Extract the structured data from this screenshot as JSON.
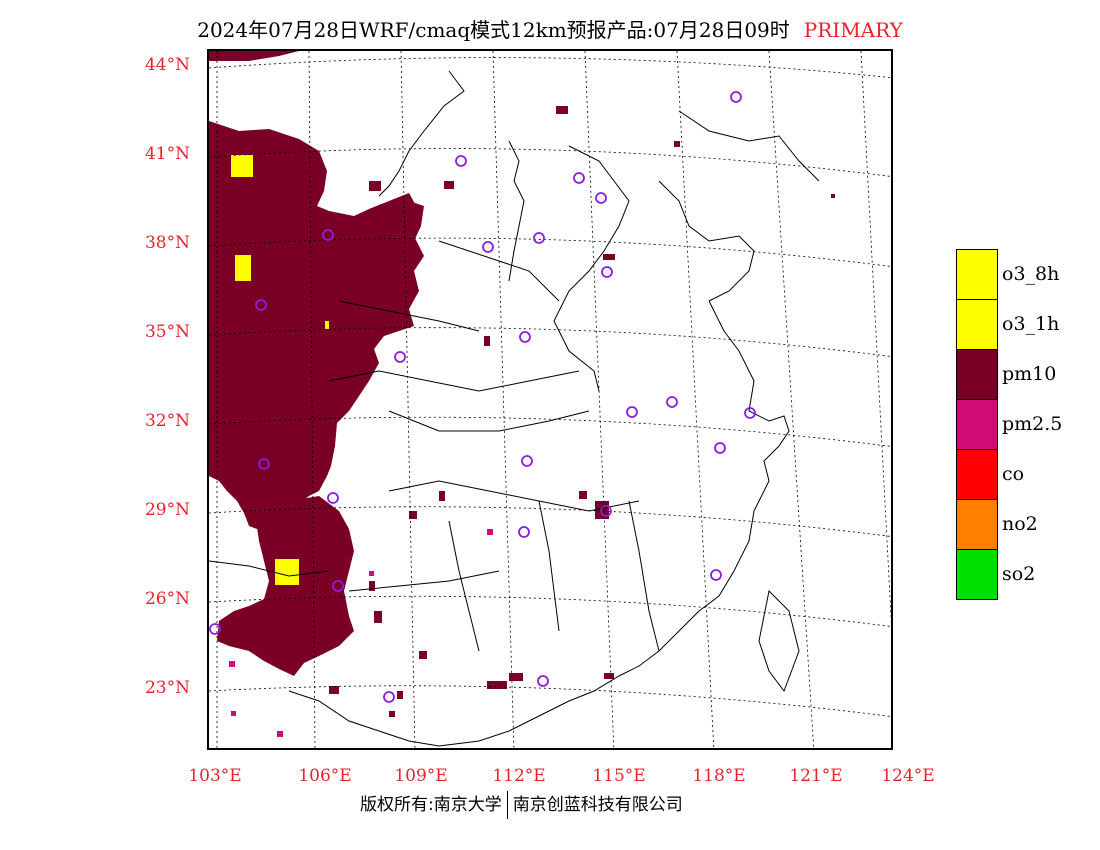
{
  "title": {
    "main": "2024年07月28日WRF/cmaq模式12km预报产品:07月28日09时",
    "tag": "PRIMARY"
  },
  "map": {
    "lat_ticks": [
      "44°N",
      "41°N",
      "38°N",
      "35°N",
      "32°N",
      "29°N",
      "26°N",
      "23°N"
    ],
    "lon_ticks": [
      "103°E",
      "106°E",
      "109°E",
      "112°E",
      "115°E",
      "118°E",
      "121°E",
      "124°E"
    ],
    "colors": {
      "pm10": "#7a0026",
      "pm25": "#d20a78",
      "o3": "#ffff00",
      "ring": "#8a1ee0",
      "grid": "#000000"
    }
  },
  "legend": [
    {
      "label": "o3_8h",
      "color": "#ffff00"
    },
    {
      "label": "o3_1h",
      "color": "#ffff00"
    },
    {
      "label": "pm10",
      "color": "#7a0026"
    },
    {
      "label": "pm2.5",
      "color": "#d20a78"
    },
    {
      "label": "co",
      "color": "#ff0000"
    },
    {
      "label": "no2",
      "color": "#ff7f00"
    },
    {
      "label": "so2",
      "color": "#00e000"
    }
  ],
  "footer": {
    "left": "版权所有:南京大学",
    "right": "南京创蓝科技有限公司"
  }
}
